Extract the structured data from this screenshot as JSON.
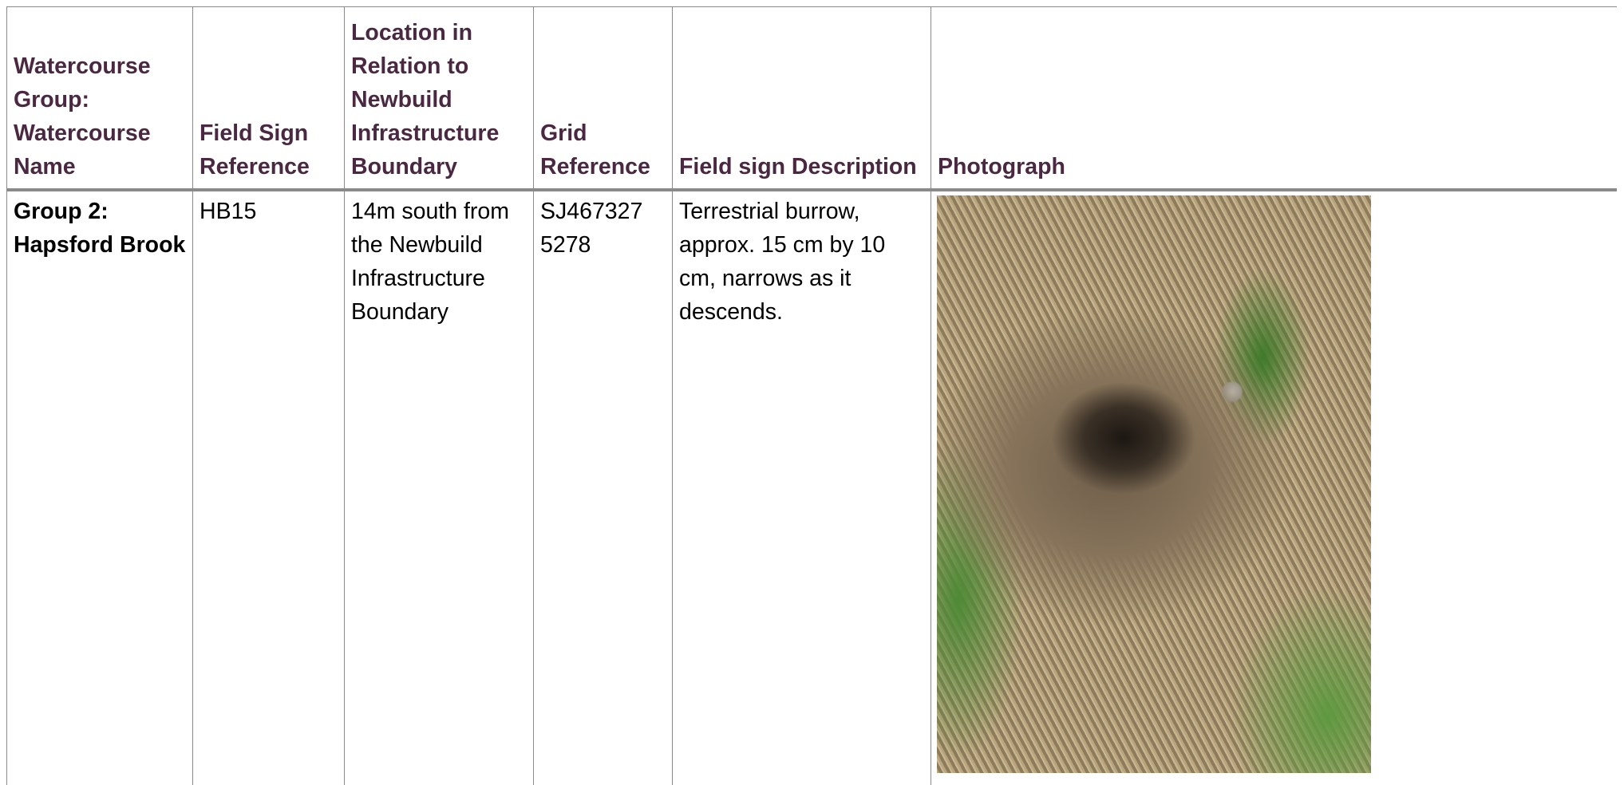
{
  "table": {
    "header": [
      "Watercourse Group: Watercourse Name",
      "Field Sign Reference",
      "Location in Relation to Newbuild Infrastructure Boundary",
      "Grid Reference",
      "Field sign Description",
      "Photograph"
    ],
    "rows": [
      [
        "Group 2: Hapsford Brook",
        "HB15",
        "14m south from the Newbuild Infrastructure Boundary",
        "SJ467327 5278",
        "Terrestrial burrow, approx. 15 cm by 10 cm, narrows as it descends."
      ]
    ]
  }
}
